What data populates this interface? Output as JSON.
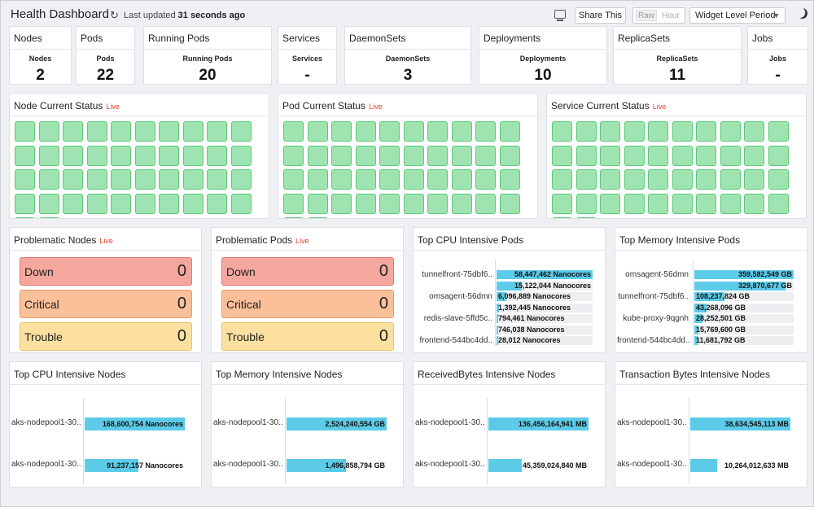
{
  "header": {
    "title": "Health Dashboard",
    "updated_prefix": "Last updated ",
    "updated_value": "31 seconds ago",
    "share_label": "Share This",
    "raw_label": "Raw",
    "hour_label": "Hour",
    "period_value": "Widget Level Period"
  },
  "counts": [
    {
      "title": "Nodes",
      "label": "Nodes",
      "value": "2"
    },
    {
      "title": "Pods",
      "label": "Pods",
      "value": "22"
    },
    {
      "title": "Running Pods",
      "label": "Running Pods",
      "value": "20"
    },
    {
      "title": "Services",
      "label": "Services",
      "value": "-"
    },
    {
      "title": "DaemonSets",
      "label": "DaemonSets",
      "value": "3"
    },
    {
      "title": "Deployments",
      "label": "Deployments",
      "value": "10"
    },
    {
      "title": "ReplicaSets",
      "label": "ReplicaSets",
      "value": "11"
    },
    {
      "title": "Jobs",
      "label": "Jobs",
      "value": "-"
    }
  ],
  "live_label": "Live",
  "status_widgets": [
    {
      "title": "Node Current Status"
    },
    {
      "title": "Pod Current Status"
    },
    {
      "title": "Service Current Status"
    }
  ],
  "problem_widgets": [
    {
      "title": "Problematic Nodes",
      "rows": [
        {
          "label": "Down",
          "value": "0"
        },
        {
          "label": "Critical",
          "value": "0"
        },
        {
          "label": "Trouble",
          "value": "0"
        }
      ]
    },
    {
      "title": "Problematic Pods",
      "rows": [
        {
          "label": "Down",
          "value": "0"
        },
        {
          "label": "Critical",
          "value": "0"
        },
        {
          "label": "Trouble",
          "value": "0"
        }
      ]
    }
  ],
  "cpu_pods": {
    "title": "Top CPU Intensive Pods",
    "labels": [
      "tunnelfront-75dbf6..",
      "omsagent-56dmn",
      "redis-slave-5ffd5c..",
      "frontend-544bc4dd.."
    ],
    "values": [
      "58,447,462 Nanocores",
      "15,122,044 Nanocores",
      "6,096,889 Nanocores",
      "1,392,445 Nanocores",
      "794,461 Nanocores",
      "746,038 Nanocores",
      "28,012 Nanocores"
    ],
    "fractions": [
      1.0,
      0.26,
      0.1,
      0.024,
      0.014,
      0.013,
      0.001
    ]
  },
  "mem_pods": {
    "title": "Top Memory Intensive Pods",
    "labels": [
      "omsagent-56dmn",
      "tunnelfront-75dbf6..",
      "kube-proxy-9qgnh",
      "frontend-544bc4dd.."
    ],
    "values": [
      "359,582,549 GB",
      "329,870,677 GB",
      "108,237,824 GB",
      "43,268,096 GB",
      "28,252,501 GB",
      "15,769,600 GB",
      "11,681,792 GB"
    ],
    "fractions": [
      1.0,
      0.92,
      0.3,
      0.12,
      0.079,
      0.044,
      0.032
    ]
  },
  "node_widgets": [
    {
      "title": "Top CPU Intensive Nodes",
      "labels": [
        "aks-nodepool1-30..",
        "aks-nodepool1-30.."
      ],
      "values": [
        "168,600,754 Nanocores",
        "91,237,157 Nanocores"
      ],
      "fractions": [
        1.0,
        0.54
      ]
    },
    {
      "title": "Top Memory Intensive Nodes",
      "labels": [
        "aks-nodepool1-30..",
        "aks-nodepool1-30.."
      ],
      "values": [
        "2,524,240,554 GB",
        "1,496,858,794 GB"
      ],
      "fractions": [
        1.0,
        0.59
      ]
    },
    {
      "title": "ReceivedBytes Intensive Nodes",
      "labels": [
        "aks-nodepool1-30..",
        "aks-nodepool1-30.."
      ],
      "values": [
        "136,456,164,941 MB",
        "45,359,024,840 MB"
      ],
      "fractions": [
        1.0,
        0.33
      ]
    },
    {
      "title": "Transaction Bytes Intensive Nodes",
      "labels": [
        "aks-nodepool1-30..",
        "aks-nodepool1-30.."
      ],
      "values": [
        "38,634,545,113 MB",
        "10,264,012,633 MB"
      ],
      "fractions": [
        1.0,
        0.27
      ]
    }
  ],
  "colors": {
    "healthy_tile": "#9fe3b0",
    "bar": "#5ccbe8",
    "live": "#e0402c"
  }
}
